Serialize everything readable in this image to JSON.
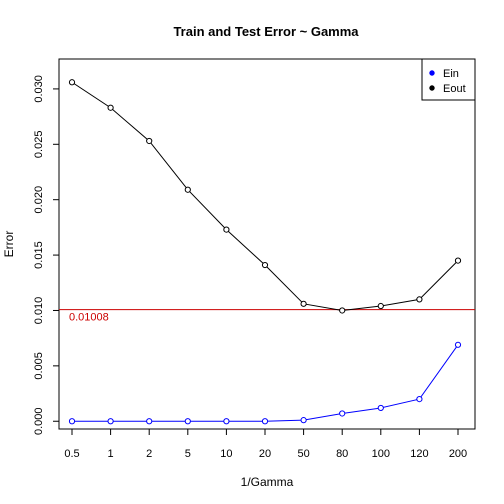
{
  "chart_data": {
    "type": "line",
    "title": "Train and Test Error ~ Gamma",
    "xlabel": "1/Gamma",
    "ylabel": "Error",
    "categories": [
      "0.5",
      "1",
      "2",
      "5",
      "10",
      "20",
      "50",
      "80",
      "100",
      "120",
      "200"
    ],
    "yticks": [
      "0.000",
      "0.005",
      "0.010",
      "0.015",
      "0.020",
      "0.025",
      "0.030"
    ],
    "ylim": [
      -0.0007,
      0.0327
    ],
    "grid": false,
    "legend_position": "top-right",
    "series": [
      {
        "name": "Ein",
        "color": "#0000ff",
        "values": [
          0.0,
          0.0,
          0.0,
          0.0,
          0.0,
          0.0,
          0.0001,
          0.0007,
          0.0012,
          0.002,
          0.0069
        ]
      },
      {
        "name": "Eout",
        "color": "#000000",
        "values": [
          0.0306,
          0.0283,
          0.0253,
          0.0209,
          0.0173,
          0.0141,
          0.0106,
          0.01,
          0.0104,
          0.011,
          0.0145
        ]
      }
    ],
    "reference_line": {
      "value": 0.01008,
      "label": "0.01008",
      "color": "#cc0000"
    }
  }
}
